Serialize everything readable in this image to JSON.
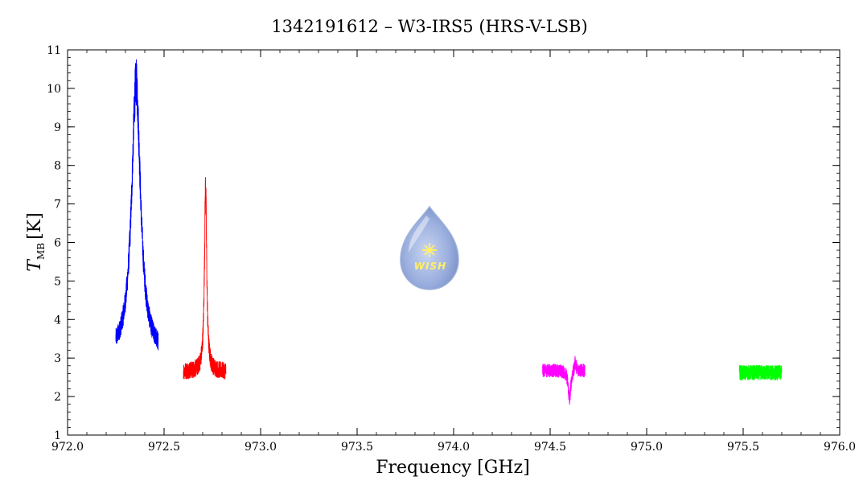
{
  "chart_data": {
    "type": "line",
    "title": "1342191612 – W3-IRS5 (HRS-V-LSB)",
    "xlabel": "Frequency [GHz]",
    "ylabel": {
      "symbol": "T",
      "subscript": "MB",
      "unit": "[K]"
    },
    "xlim": [
      972.0,
      976.0
    ],
    "ylim": [
      1,
      11
    ],
    "x_ticks": [
      "972.0",
      "972.5",
      "973.0",
      "973.5",
      "974.0",
      "974.5",
      "975.0",
      "975.5",
      "976.0"
    ],
    "y_ticks": [
      "1",
      "2",
      "3",
      "4",
      "5",
      "6",
      "7",
      "8",
      "9",
      "10",
      "11"
    ],
    "x_minor_step": 0.1,
    "y_minor_step": 0.2,
    "grid": false,
    "logo_text": "WISH",
    "series": [
      {
        "color": "#0000ff",
        "x_range": [
          972.25,
          972.47
        ],
        "baseline": 3.05,
        "noise": 0.45,
        "lines": [
          {
            "center": 972.355,
            "height": 7.1,
            "width": 0.028
          }
        ]
      },
      {
        "color": "#ff0000",
        "x_range": [
          972.6,
          972.82
        ],
        "baseline": 2.65,
        "noise": 0.45,
        "lines": [
          {
            "center": 972.715,
            "height": 4.8,
            "width": 0.007
          }
        ]
      },
      {
        "color": "#ff00ff",
        "x_range": [
          974.46,
          974.68
        ],
        "baseline": 2.68,
        "noise": 0.35,
        "lines": [
          {
            "center": 974.6,
            "height": -0.75,
            "width": 0.008
          },
          {
            "center": 974.63,
            "height": 0.25,
            "width": 0.006
          }
        ]
      },
      {
        "color": "#00ff00",
        "x_range": [
          975.48,
          975.7
        ],
        "baseline": 2.62,
        "noise": 0.4,
        "lines": []
      }
    ]
  }
}
